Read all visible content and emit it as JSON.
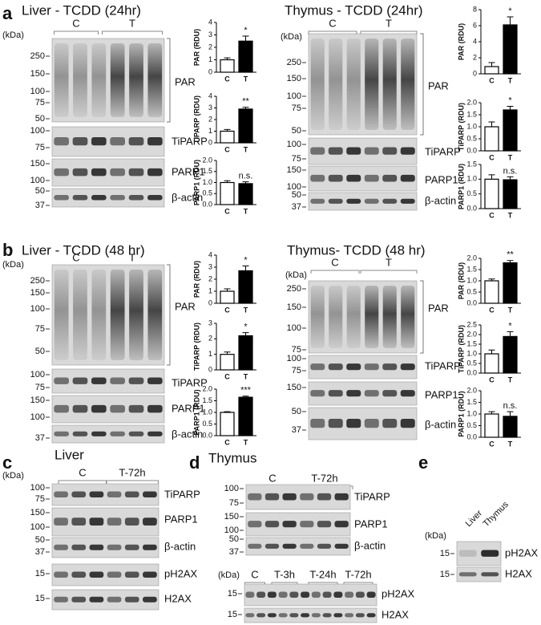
{
  "figure": {
    "sections": [
      {
        "letter": "a",
        "title": "Liver - TCDD (24hr)",
        "kda": "(kDa)",
        "groups": [
          "C",
          "T"
        ],
        "blots": [
          {
            "label": "PAR",
            "markers": [
              250,
              150,
              100,
              75,
              50
            ]
          },
          {
            "label": "TiPARP",
            "markers": [
              100,
              75
            ]
          },
          {
            "label": "PARP1",
            "markers": [
              150,
              100
            ]
          },
          {
            "label": "β-actin",
            "markers": [
              50,
              37
            ]
          }
        ]
      },
      {
        "title": "Thymus - TCDD (24hr)",
        "kda": "(kDa)",
        "groups": [
          "C",
          "T"
        ],
        "blots": [
          {
            "label": "PAR",
            "markers": [
              250,
              150,
              100,
              75,
              50
            ]
          },
          {
            "label": "TiPARP",
            "markers": [
              100,
              75
            ]
          },
          {
            "label": "PARP1",
            "markers": [
              150,
              100
            ]
          },
          {
            "label": "β-actin",
            "markers": [
              50,
              37
            ]
          }
        ]
      },
      {
        "letter": "b",
        "title": "Liver - TCDD (48 hr)",
        "kda": "(kDa)",
        "groups": [
          "C",
          "T"
        ],
        "blots": [
          {
            "label": "PAR",
            "markers": [
              250,
              150,
              100,
              75,
              50
            ]
          },
          {
            "label": "TiPARP",
            "markers": [
              100,
              75
            ]
          },
          {
            "label": "PARP1",
            "markers": [
              150,
              100
            ]
          },
          {
            "label": "β-actin",
            "markers": [
              37
            ]
          }
        ]
      },
      {
        "title": "Thymus- TCDD (48 hr)",
        "kda": "(kDa)",
        "groups": [
          "C",
          "T"
        ],
        "blots": [
          {
            "label": "PAR",
            "markers": [
              250,
              150,
              100,
              75
            ]
          },
          {
            "label": "TiPARP",
            "markers": [
              100,
              75
            ]
          },
          {
            "label": "PARP1",
            "markers": [
              150
            ]
          },
          {
            "label": "β-actin",
            "markers": [
              50,
              37
            ]
          }
        ]
      },
      {
        "letter": "c",
        "title": "Liver",
        "kda": "(kDa)",
        "groups": [
          "C",
          "T-72h"
        ],
        "blots": [
          {
            "label": "TiPARP",
            "markers": [
              100,
              75
            ]
          },
          {
            "label": "PARP1",
            "markers": [
              150,
              100
            ]
          },
          {
            "label": "β-actin",
            "markers": [
              50,
              37
            ]
          },
          {
            "label": "pH2AX",
            "markers": [
              15
            ]
          },
          {
            "label": "H2AX",
            "markers": [
              15
            ]
          }
        ]
      },
      {
        "letter": "d",
        "title": "Thymus",
        "groups": [
          "C",
          "T-72h"
        ],
        "blots": [
          {
            "label": "TiPARP",
            "markers": [
              100,
              75
            ]
          },
          {
            "label": "PARP1",
            "markers": [
              150,
              100
            ]
          },
          {
            "label": "β-actin",
            "markers": [
              50,
              37
            ]
          }
        ]
      },
      {
        "kda": "(kDa)",
        "groups": [
          "C",
          "T-3h",
          "T-24h",
          "T-72h"
        ],
        "blots": [
          {
            "label": "pH2AX",
            "markers": [
              15
            ]
          },
          {
            "label": "H2AX",
            "markers": [
              15
            ]
          }
        ]
      },
      {
        "letter": "e",
        "kda": "(kDa)",
        "groups": [
          "Liver",
          "Thymus"
        ],
        "blots": [
          {
            "label": "pH2AX",
            "markers": [
              15
            ]
          },
          {
            "label": "H2AX",
            "markers": [
              15
            ]
          }
        ]
      }
    ]
  },
  "chart_data": [
    {
      "type": "bar",
      "ylabel": "PAR (RDU)",
      "categories": [
        "C",
        "T"
      ],
      "values": [
        1.0,
        2.5
      ],
      "errors": [
        0.15,
        0.4
      ],
      "annotation": "*",
      "colors": [
        "#ffffff",
        "#000000"
      ],
      "ylim": [
        0,
        4
      ],
      "yticks": [
        0,
        1,
        2,
        3,
        4
      ]
    },
    {
      "type": "bar",
      "ylabel": "TiPARP (RDU)",
      "categories": [
        "C",
        "T"
      ],
      "values": [
        1.0,
        2.9
      ],
      "errors": [
        0.15,
        0.15
      ],
      "annotation": "**",
      "colors": [
        "#ffffff",
        "#000000"
      ],
      "ylim": [
        0,
        4
      ],
      "yticks": [
        0,
        1,
        2,
        3,
        4
      ]
    },
    {
      "type": "bar",
      "ylabel": "PARP1 (RDU)",
      "categories": [
        "C",
        "T"
      ],
      "values": [
        1.0,
        0.95
      ],
      "errors": [
        0.08,
        0.08
      ],
      "annotation": "n.s.",
      "colors": [
        "#ffffff",
        "#000000"
      ],
      "ylim": [
        0,
        2
      ],
      "yticks": [
        {
          "value": 0,
          "label": "0.0"
        },
        0.5,
        {
          "value": 1,
          "label": "1.0"
        },
        1.5,
        {
          "value": 2,
          "label": "2.0"
        }
      ]
    },
    {
      "type": "bar",
      "ylabel": "PAR (RDU)",
      "categories": [
        "C",
        "T"
      ],
      "values": [
        0.9,
        6.1
      ],
      "errors": [
        0.5,
        1.0
      ],
      "annotation": "*",
      "colors": [
        "#ffffff",
        "#000000"
      ],
      "ylim": [
        0,
        8
      ],
      "yticks": [
        0,
        2,
        4,
        6,
        8
      ]
    },
    {
      "type": "bar",
      "ylabel": "TiPARP (RDU)",
      "categories": [
        "C",
        "T"
      ],
      "values": [
        1.0,
        1.7
      ],
      "errors": [
        0.2,
        0.15
      ],
      "annotation": "*",
      "colors": [
        "#ffffff",
        "#000000"
      ],
      "ylim": [
        0,
        2
      ],
      "yticks": [
        {
          "value": 0,
          "label": "0.0"
        },
        0.5,
        {
          "value": 1,
          "label": "1.0"
        },
        1.5,
        {
          "value": 2,
          "label": "2.0"
        }
      ]
    },
    {
      "type": "bar",
      "ylabel": "PARP1 (RDU)",
      "categories": [
        "C",
        "T"
      ],
      "values": [
        1.0,
        0.98
      ],
      "errors": [
        0.15,
        0.1
      ],
      "annotation": "n.s.",
      "colors": [
        "#ffffff",
        "#000000"
      ],
      "ylim": [
        0,
        1.5
      ],
      "yticks": [
        {
          "value": 0,
          "label": "0.0"
        },
        0.5,
        {
          "value": 1,
          "label": "1.0"
        },
        1.5
      ]
    },
    {
      "type": "bar",
      "ylabel": "PAR (RDU)",
      "categories": [
        "C",
        "T"
      ],
      "values": [
        1.0,
        2.7
      ],
      "errors": [
        0.2,
        0.4
      ],
      "annotation": "*",
      "colors": [
        "#ffffff",
        "#000000"
      ],
      "ylim": [
        0,
        4
      ],
      "yticks": [
        0,
        1,
        2,
        3,
        4
      ]
    },
    {
      "type": "bar",
      "ylabel": "TiPARP (RDU)",
      "categories": [
        "C",
        "T"
      ],
      "values": [
        1.0,
        2.2
      ],
      "errors": [
        0.15,
        0.2
      ],
      "annotation": "*",
      "colors": [
        "#ffffff",
        "#000000"
      ],
      "ylim": [
        0,
        3
      ],
      "yticks": [
        0,
        1,
        2,
        3
      ]
    },
    {
      "type": "bar",
      "ylabel": "PARP1 (RDU)",
      "categories": [
        "C",
        "T"
      ],
      "values": [
        1.0,
        1.65
      ],
      "errors": [
        0.03,
        0.05
      ],
      "annotation": "***",
      "colors": [
        "#ffffff",
        "#000000"
      ],
      "ylim": [
        0,
        2
      ],
      "yticks": [
        {
          "value": 0,
          "label": "0.0"
        },
        0.5,
        {
          "value": 1,
          "label": "1.0"
        },
        1.5,
        {
          "value": 2,
          "label": "2.0"
        }
      ]
    },
    {
      "type": "bar",
      "ylabel": "PAR (RDU)",
      "categories": [
        "C",
        "T"
      ],
      "values": [
        1.0,
        1.8
      ],
      "errors": [
        0.08,
        0.1
      ],
      "annotation": "**",
      "colors": [
        "#ffffff",
        "#000000"
      ],
      "ylim": [
        0,
        2
      ],
      "yticks": [
        {
          "value": 0,
          "label": "0.0"
        },
        0.5,
        {
          "value": 1,
          "label": "1.0"
        },
        1.5,
        {
          "value": 2,
          "label": "2.0"
        }
      ]
    },
    {
      "type": "bar",
      "ylabel": "TiPARP (RDU)",
      "categories": [
        "C",
        "T"
      ],
      "values": [
        1.0,
        1.9
      ],
      "errors": [
        0.2,
        0.25
      ],
      "annotation": "*",
      "colors": [
        "#ffffff",
        "#000000"
      ],
      "ylim": [
        0,
        2.5
      ],
      "yticks": [
        {
          "value": 0,
          "label": "0.0"
        },
        0.5,
        {
          "value": 1,
          "label": "1.0"
        },
        1.5,
        {
          "value": 2,
          "label": "2.0"
        },
        2.5
      ]
    },
    {
      "type": "bar",
      "ylabel": "PARP1 (RDU)",
      "categories": [
        "C",
        "T"
      ],
      "values": [
        1.0,
        0.9
      ],
      "errors": [
        0.1,
        0.2
      ],
      "annotation": "n.s.",
      "colors": [
        "#ffffff",
        "#000000"
      ],
      "ylim": [
        0,
        2
      ],
      "yticks": [
        {
          "value": 0,
          "label": "0.0"
        },
        0.5,
        {
          "value": 1,
          "label": "1.0"
        },
        1.5,
        {
          "value": 2,
          "label": "2.0"
        }
      ]
    }
  ]
}
